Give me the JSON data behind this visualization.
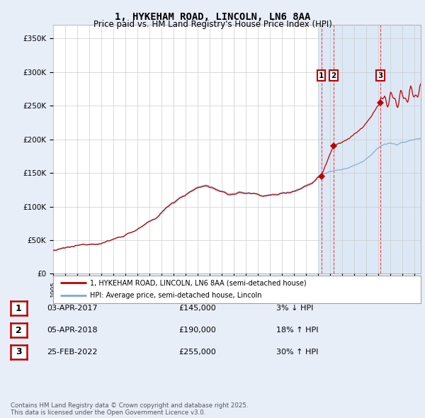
{
  "title": "1, HYKEHAM ROAD, LINCOLN, LN6 8AA",
  "subtitle": "Price paid vs. HM Land Registry's House Price Index (HPI)",
  "ylabel_ticks": [
    "£0",
    "£50K",
    "£100K",
    "£150K",
    "£200K",
    "£250K",
    "£300K",
    "£350K"
  ],
  "ytick_values": [
    0,
    50000,
    100000,
    150000,
    200000,
    250000,
    300000,
    350000
  ],
  "ylim": [
    0,
    370000
  ],
  "xlim_start": 1995.0,
  "xlim_end": 2025.5,
  "bg_color": "#e8eef8",
  "plot_bg_color": "#ffffff",
  "shade_bg_color": "#dce8f5",
  "shade_start": 2017.0,
  "grid_color": "#cccccc",
  "hpi_line_color": "#7aaad0",
  "price_line_color": "#bb0000",
  "vline_color": "#ee3333",
  "sale_markers": [
    {
      "year": 2017.25,
      "price": 145000,
      "label": "1"
    },
    {
      "year": 2018.27,
      "price": 190000,
      "label": "2"
    },
    {
      "year": 2022.15,
      "price": 255000,
      "label": "3"
    }
  ],
  "legend_entries": [
    {
      "label": "1, HYKEHAM ROAD, LINCOLN, LN6 8AA (semi-detached house)",
      "color": "#bb0000"
    },
    {
      "label": "HPI: Average price, semi-detached house, Lincoln",
      "color": "#7aaad0"
    }
  ],
  "table_rows": [
    {
      "num": "1",
      "date": "03-APR-2017",
      "price": "£145,000",
      "change": "3% ↓ HPI"
    },
    {
      "num": "2",
      "date": "05-APR-2018",
      "price": "£190,000",
      "change": "18% ↑ HPI"
    },
    {
      "num": "3",
      "date": "25-FEB-2022",
      "price": "£255,000",
      "change": "30% ↑ HPI"
    }
  ],
  "footer": "Contains HM Land Registry data © Crown copyright and database right 2025.\nThis data is licensed under the Open Government Licence v3.0."
}
